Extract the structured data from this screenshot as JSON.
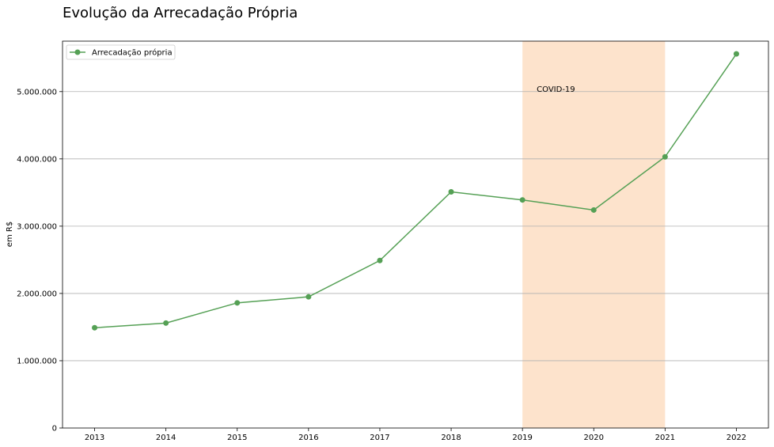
{
  "chart_data": {
    "type": "line",
    "title": "Evolução da Arrecadação Própria",
    "xlabel": "",
    "ylabel": "em R$",
    "x": [
      2013,
      2014,
      2015,
      2016,
      2017,
      2018,
      2019,
      2020,
      2021,
      2022
    ],
    "series": [
      {
        "name": "Arrecadação própria",
        "color": "#55a055",
        "marker": "circle",
        "values": [
          1490000,
          1560000,
          1860000,
          1950000,
          2490000,
          3510000,
          3390000,
          3240000,
          4030000,
          5560000
        ]
      }
    ],
    "xlim": [
      2012.55,
      2022.45
    ],
    "ylim": [
      0,
      5750000
    ],
    "y_ticks": [
      {
        "value": 0,
        "label": "0"
      },
      {
        "value": 1000000,
        "label": "1.000.000"
      },
      {
        "value": 2000000,
        "label": "2.000.000"
      },
      {
        "value": 3000000,
        "label": "3.000.000"
      },
      {
        "value": 4000000,
        "label": "4.000.000"
      },
      {
        "value": 5000000,
        "label": "5.000.000"
      }
    ],
    "x_ticks": [
      {
        "value": 2013,
        "label": "2013"
      },
      {
        "value": 2014,
        "label": "2014"
      },
      {
        "value": 2015,
        "label": "2015"
      },
      {
        "value": 2016,
        "label": "2016"
      },
      {
        "value": 2017,
        "label": "2017"
      },
      {
        "value": 2018,
        "label": "2018"
      },
      {
        "value": 2019,
        "label": "2019"
      },
      {
        "value": 2020,
        "label": "2020"
      },
      {
        "value": 2021,
        "label": "2021"
      },
      {
        "value": 2022,
        "label": "2022"
      }
    ],
    "grid": "horizontal",
    "legend_position": "top-left",
    "shaded_region": {
      "x_start": 2019,
      "x_end": 2021,
      "color": "#fde3cc",
      "label": "COVID-19",
      "label_x": 2019.2,
      "label_y": 5000000
    }
  }
}
